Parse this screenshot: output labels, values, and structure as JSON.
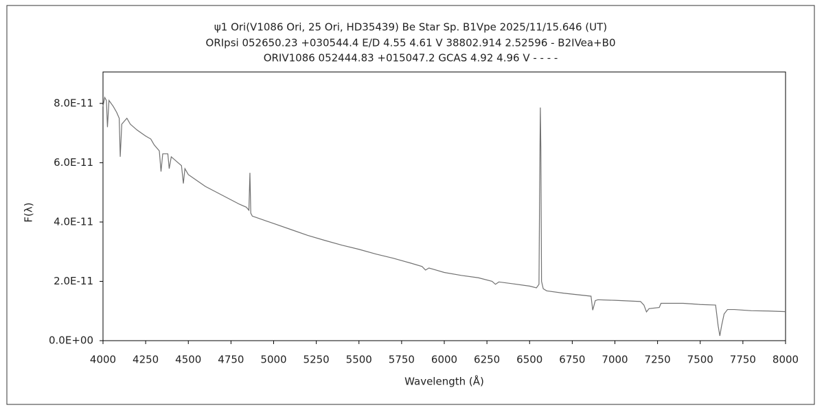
{
  "chart_data": {
    "type": "line",
    "title": "ψ1 Ori(V1086 Ori, 25 Ori, HD35439)  Be Star  Sp. B1Vpe  2025/11/15.646 (UT)",
    "subtitle": [
      "ORIpsi 052650.23 +030544.4 E/D 4.55 4.61 V 38802.914 2.52596 - B2IVea+B0",
      "ORIV1086 052444.83 +015047.2 GCAS 4.92 4.96 V - - - -"
    ],
    "x_label": "Wavelength (Å)",
    "y_label": "F(λ)",
    "color": "#707070",
    "x": [
      4000,
      4010,
      4020,
      4026,
      4035,
      4060,
      4080,
      4095,
      4101,
      4110,
      4140,
      4160,
      4200,
      4250,
      4280,
      4300,
      4330,
      4340,
      4350,
      4380,
      4388,
      4400,
      4440,
      4460,
      4471,
      4480,
      4500,
      4550,
      4600,
      4650,
      4700,
      4750,
      4800,
      4840,
      4855,
      4861,
      4866,
      4875,
      4900,
      4950,
      5000,
      5100,
      5200,
      5300,
      5400,
      5500,
      5600,
      5700,
      5800,
      5870,
      5890,
      5910,
      6000,
      6100,
      6200,
      6280,
      6300,
      6320,
      6400,
      6500,
      6540,
      6555,
      6560,
      6563,
      6566,
      6570,
      6580,
      6600,
      6700,
      6860,
      6870,
      6885,
      6900,
      7000,
      7150,
      7170,
      7185,
      7200,
      7260,
      7270,
      7400,
      7500,
      7590,
      7605,
      7615,
      7625,
      7640,
      7660,
      7700,
      7800,
      7900,
      8000
    ],
    "values": [
      7.9e-11,
      8.2e-11,
      8.1e-11,
      7.2e-11,
      8.1e-11,
      7.9e-11,
      7.7e-11,
      7.5e-11,
      6.2e-11,
      7.3e-11,
      7.5e-11,
      7.3e-11,
      7.1e-11,
      6.9e-11,
      6.8e-11,
      6.6e-11,
      6.4e-11,
      5.7e-11,
      6.3e-11,
      6.3e-11,
      5.8e-11,
      6.2e-11,
      6e-11,
      5.9e-11,
      5.3e-11,
      5.8e-11,
      5.6e-11,
      5.4e-11,
      5.2e-11,
      5.05e-11,
      4.9e-11,
      4.75e-11,
      4.6e-11,
      4.5e-11,
      4.4e-11,
      5.66e-11,
      4.3e-11,
      4.2e-11,
      4.15e-11,
      4.05e-11,
      3.95e-11,
      3.75e-11,
      3.55e-11,
      3.38e-11,
      3.22e-11,
      3.08e-11,
      2.92e-11,
      2.78e-11,
      2.62e-11,
      2.5e-11,
      2.38e-11,
      2.45e-11,
      2.3e-11,
      2.2e-11,
      2.12e-11,
      2e-11,
      1.9e-11,
      1.98e-11,
      1.92e-11,
      1.84e-11,
      1.78e-11,
      1.9e-11,
      6e-11,
      7.86e-11,
      6.5e-11,
      2e-11,
      1.75e-11,
      1.68e-11,
      1.6e-11,
      1.5e-11,
      1.03e-11,
      1.35e-11,
      1.38e-11,
      1.36e-11,
      1.32e-11,
      1.2e-11,
      9.7e-12,
      1.08e-11,
      1.12e-11,
      1.26e-11,
      1.26e-11,
      1.22e-11,
      1.2e-11,
      5e-12,
      1.6e-12,
      5e-12,
      9e-12,
      1.05e-11,
      1.05e-11,
      1.01e-11,
      1e-11,
      9.8e-12
    ],
    "xlim": [
      4000,
      8000
    ],
    "xticks": [
      4000,
      4250,
      4500,
      4750,
      5000,
      5250,
      5500,
      5750,
      6000,
      6250,
      6500,
      6750,
      7000,
      7250,
      7500,
      7750,
      8000
    ],
    "ylim": [
      0,
      9.06e-11
    ],
    "yticks": [
      {
        "value": 0,
        "label": "0.0E+00"
      },
      {
        "value": 2e-11,
        "label": "2.0E-11"
      },
      {
        "value": 4e-11,
        "label": "4.0E-11"
      },
      {
        "value": 6e-11,
        "label": "6.0E-11"
      },
      {
        "value": 8e-11,
        "label": "8.0E-11"
      }
    ],
    "grid": false
  }
}
